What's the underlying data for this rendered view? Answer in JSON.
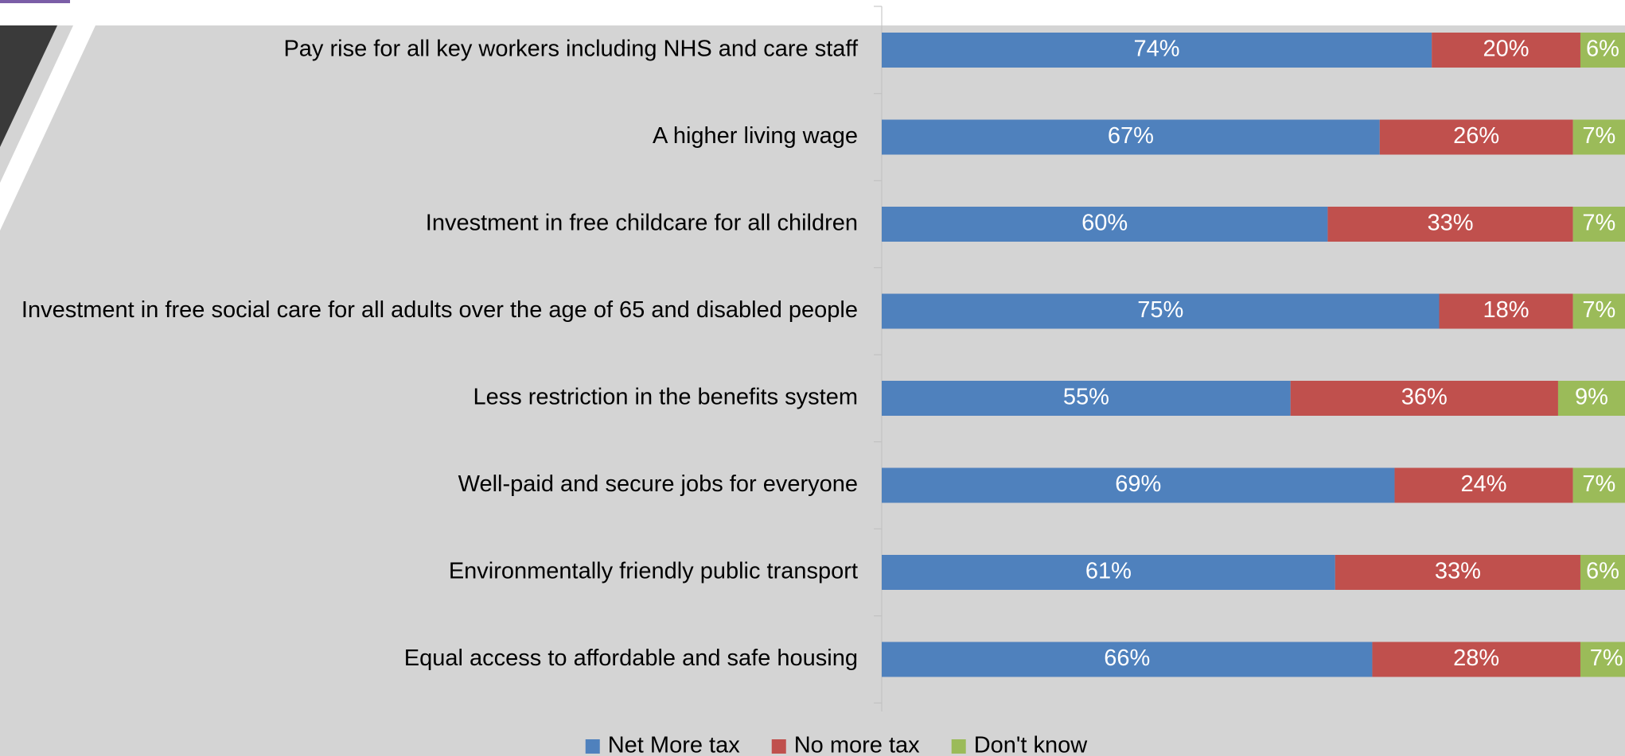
{
  "chart_data": {
    "type": "bar",
    "orientation": "horizontal",
    "stacked": true,
    "value_format": "percent",
    "categories": [
      "Pay rise for all key workers including NHS and care staff",
      "A higher living wage",
      "Investment in free childcare for all children",
      "Investment in free social care for all adults over the age of 65 and disabled people",
      "Less restriction in the benefits system",
      "Well-paid and secure jobs for everyone",
      "Environmentally friendly public transport",
      "Equal access to affordable and safe housing"
    ],
    "series": [
      {
        "name": "Net More tax",
        "color": "#4f81bd",
        "values": [
          74,
          67,
          60,
          75,
          55,
          69,
          61,
          66
        ]
      },
      {
        "name": "No more tax",
        "color": "#c0504d",
        "values": [
          20,
          26,
          33,
          18,
          36,
          24,
          33,
          28
        ]
      },
      {
        "name": "Don't know",
        "color": "#9bbb59",
        "values": [
          6,
          7,
          7,
          7,
          9,
          7,
          6,
          7
        ]
      }
    ],
    "xlim": [
      0,
      100
    ],
    "grid": false,
    "legend_position": "bottom",
    "title": "",
    "xlabel": "",
    "ylabel": ""
  },
  "colors": {
    "plot_background": "#d4d4d4",
    "axis_line": "#bfbfbf",
    "decor_dark": "#3a3a3a",
    "decor_accent": "#7b5ea7"
  }
}
